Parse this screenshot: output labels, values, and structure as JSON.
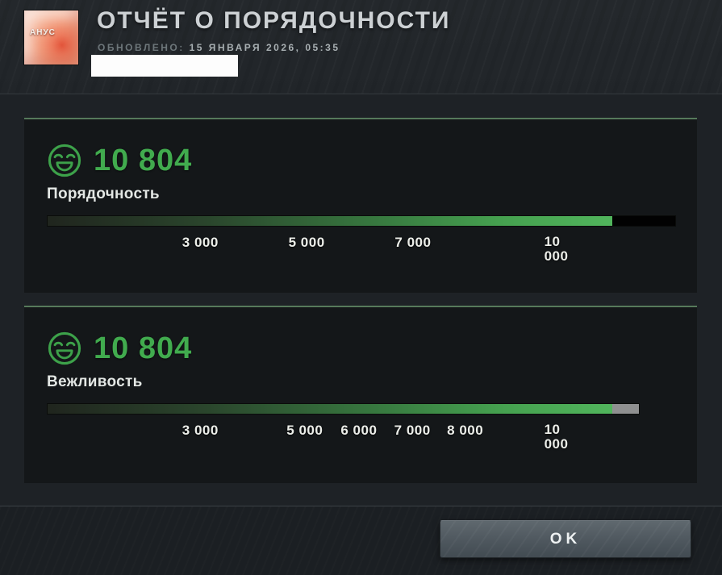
{
  "header": {
    "title": "ОТЧЁТ О ПОРЯДОЧНОСТИ",
    "updated_label": "ОБНОВЛЕНО:",
    "updated_value": "15 ЯНВАРЯ 2026, 05:35",
    "avatar_text": "АНУС"
  },
  "panels": [
    {
      "icon": "smiley-happy-icon",
      "score": "10 804",
      "label": "Порядочность",
      "bar": {
        "width_pct": 100,
        "fill_pct": 90,
        "cap_pct": 10,
        "cap_color": "#020202"
      },
      "ticks": [
        {
          "label": "3 000",
          "pos": 24.4
        },
        {
          "label": "5 000",
          "pos": 41.3
        },
        {
          "label": "7 000",
          "pos": 58.2
        },
        {
          "label": "10 000",
          "pos": 82,
          "wrap": true
        }
      ]
    },
    {
      "icon": "smiley-happy-icon",
      "score": "10 804",
      "label": "Вежливость",
      "bar": {
        "width_pct": 94.2,
        "fill_pct": 95.5,
        "cap_pct": 4.5,
        "cap_color": "#8f9090"
      },
      "ticks": [
        {
          "label": "3 000",
          "pos": 24.4
        },
        {
          "label": "5 000",
          "pos": 41.0
        },
        {
          "label": "6 000",
          "pos": 49.6
        },
        {
          "label": "7 000",
          "pos": 58.1
        },
        {
          "label": "8 000",
          "pos": 66.5
        },
        {
          "label": "10 000",
          "pos": 82,
          "wrap": true
        }
      ]
    }
  ],
  "footer": {
    "ok_label": "OK"
  },
  "colors": {
    "accent_green": "#41ab4e",
    "bar_green": "#51b55c",
    "panel_top_border": "#567a5b",
    "cap_black": "#020202",
    "cap_gray": "#8f9090",
    "panel_bg": "#141719",
    "page_bg": "#1e2226"
  }
}
